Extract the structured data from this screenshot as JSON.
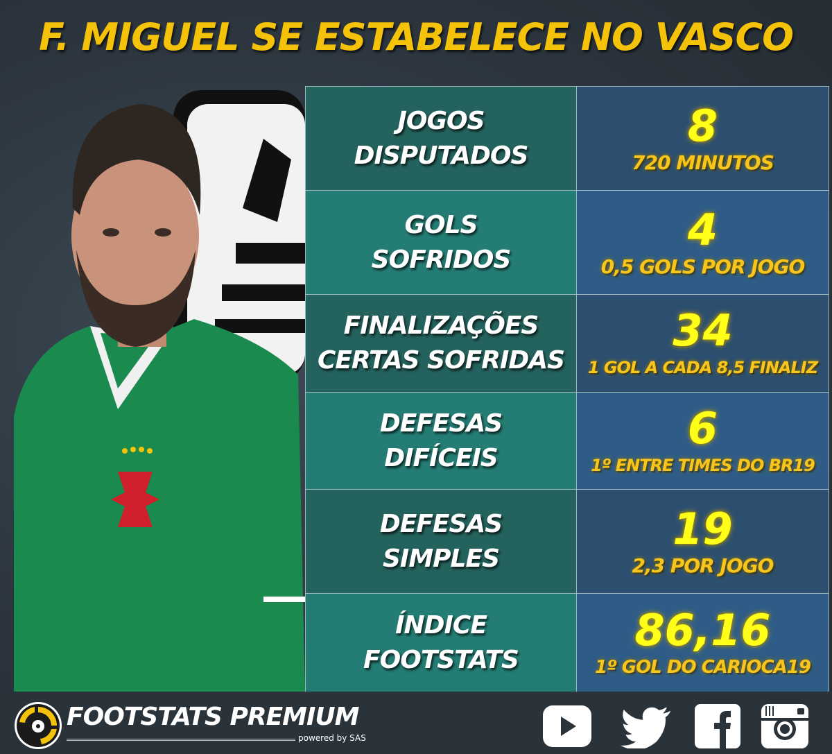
{
  "title": "F. MIGUEL SE ESTABELECE NO VASCO",
  "stats": [
    {
      "label_lines": [
        "JOGOS",
        "DISPUTADOS"
      ],
      "value": "8",
      "detail": "720 MINUTOS"
    },
    {
      "label_lines": [
        "GOLS",
        "SOFRIDOS"
      ],
      "value": "4",
      "detail": "0,5 GOLS POR JOGO"
    },
    {
      "label_lines": [
        "FINALIZAÇÕES",
        "CERTAS SOFRIDAS"
      ],
      "value": "34",
      "detail": "1 GOL A CADA 8,5 FINALIZ"
    },
    {
      "label_lines": [
        "DEFESAS",
        "DIFÍCEIS"
      ],
      "value": "6",
      "detail": "1º ENTRE TIMES DO BR19"
    },
    {
      "label_lines": [
        "DEFESAS",
        "SIMPLES"
      ],
      "value": "19",
      "detail": "2,3 POR JOGO"
    },
    {
      "label_lines": [
        "ÍNDICE",
        "FOOTSTATS"
      ],
      "value": "86,16",
      "detail": "1º GOL DO CARIOCA19"
    }
  ],
  "footer": {
    "brand": "FOOTSTATS PREMIUM",
    "powered_by": "powered by SAS",
    "social_icons": [
      "youtube-icon",
      "twitter-icon",
      "facebook-icon",
      "instagram-icon"
    ]
  },
  "colors": {
    "title": "#f5c20a",
    "value": "#ffff1a",
    "detail": "#f8c51c",
    "label_dark": "#24625d",
    "label_light": "#247d74",
    "value_dark": "#2c4f6f",
    "value_light": "#2e5c87"
  }
}
